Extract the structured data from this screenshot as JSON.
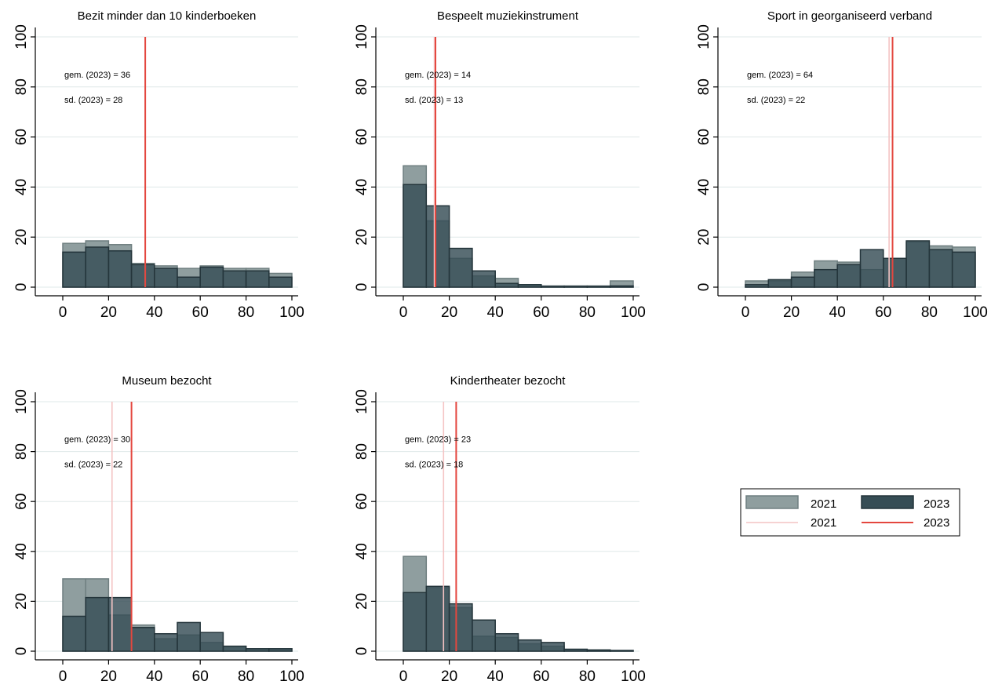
{
  "colors": {
    "bar_2021": "#8f9e9f",
    "bar_2021_stroke": "#6f7f80",
    "bar_2023": "#364d55",
    "bar_2023_stroke": "#24353b",
    "line_2021": "#f4c4c4",
    "line_2023": "#e4473f",
    "grid": "#dfe8e8"
  },
  "legend": {
    "position": "right",
    "items": [
      {
        "label": "2021",
        "kind": "bar",
        "series": "2021"
      },
      {
        "label": "2023",
        "kind": "bar",
        "series": "2023"
      },
      {
        "label": "2021",
        "kind": "line",
        "series": "2021"
      },
      {
        "label": "2023",
        "kind": "line",
        "series": "2023"
      }
    ]
  },
  "chart_data": [
    {
      "type": "bar",
      "title": "Bezit minder dan 10 kinderboeken",
      "xlim": [
        0,
        100
      ],
      "ylim": [
        0,
        100
      ],
      "xticks": [
        0,
        20,
        40,
        60,
        80,
        100
      ],
      "yticks": [
        0,
        20,
        40,
        60,
        80,
        100
      ],
      "grid": true,
      "bin_starts": [
        0,
        10,
        20,
        30,
        40,
        50,
        60,
        70,
        80,
        90
      ],
      "bin_width": 10,
      "series": [
        {
          "name": "2021",
          "values": [
            17.5,
            18.5,
            17,
            9.5,
            8.5,
            7.5,
            8.5,
            7.5,
            7.5,
            5.5
          ]
        },
        {
          "name": "2023",
          "values": [
            14,
            16,
            14.5,
            9,
            7.5,
            4,
            8,
            6.5,
            6.5,
            4
          ]
        }
      ],
      "mean_lines": [
        {
          "series": "2021",
          "x": 36
        },
        {
          "series": "2023",
          "x": 36
        }
      ],
      "annotations": [
        "gem. (2023) = 36",
        "sd. (2023) = 28"
      ]
    },
    {
      "type": "bar",
      "title": "Bespeelt muziekinstrument",
      "xlim": [
        0,
        100
      ],
      "ylim": [
        0,
        100
      ],
      "xticks": [
        0,
        20,
        40,
        60,
        80,
        100
      ],
      "yticks": [
        0,
        20,
        40,
        60,
        80,
        100
      ],
      "grid": true,
      "bin_starts": [
        0,
        10,
        20,
        30,
        40,
        50,
        60,
        70,
        80,
        90
      ],
      "bin_width": 10,
      "series": [
        {
          "name": "2021",
          "values": [
            48.5,
            26.5,
            11.5,
            4.5,
            3.5,
            1,
            0.5,
            0.5,
            0.5,
            2.5
          ]
        },
        {
          "name": "2023",
          "values": [
            41,
            32.5,
            15.5,
            6.5,
            1.5,
            1,
            0.3,
            0.3,
            0.3,
            0.5
          ]
        }
      ],
      "mean_lines": [
        {
          "series": "2021",
          "x": 13.5
        },
        {
          "series": "2023",
          "x": 14
        }
      ],
      "annotations": [
        "gem. (2023) = 14",
        "sd. (2023) = 13"
      ]
    },
    {
      "type": "bar",
      "title": "Sport in georganiseerd verband",
      "xlim": [
        0,
        100
      ],
      "ylim": [
        0,
        100
      ],
      "xticks": [
        0,
        20,
        40,
        60,
        80,
        100
      ],
      "yticks": [
        0,
        20,
        40,
        60,
        80,
        100
      ],
      "grid": true,
      "bin_starts": [
        0,
        10,
        20,
        30,
        40,
        50,
        60,
        70,
        80,
        90
      ],
      "bin_width": 10,
      "series": [
        {
          "name": "2021",
          "values": [
            2.5,
            2.5,
            6,
            10.5,
            10,
            7,
            11.5,
            18,
            16.5,
            16
          ]
        },
        {
          "name": "2023",
          "values": [
            1,
            3,
            4,
            7,
            9,
            15,
            11.5,
            18.5,
            15,
            14
          ]
        }
      ],
      "mean_lines": [
        {
          "series": "2021",
          "x": 62.5
        },
        {
          "series": "2023",
          "x": 64
        }
      ],
      "annotations": [
        "gem. (2023) = 64",
        "sd. (2023) = 22"
      ]
    },
    {
      "type": "bar",
      "title": "Museum bezocht",
      "xlim": [
        0,
        100
      ],
      "ylim": [
        0,
        100
      ],
      "xticks": [
        0,
        20,
        40,
        60,
        80,
        100
      ],
      "yticks": [
        0,
        20,
        40,
        60,
        80,
        100
      ],
      "grid": true,
      "bin_starts": [
        0,
        10,
        20,
        30,
        40,
        50,
        60,
        70,
        80,
        90
      ],
      "bin_width": 10,
      "series": [
        {
          "name": "2021",
          "values": [
            29,
            29,
            14.5,
            10.5,
            5,
            6.5,
            3.5,
            2,
            1,
            1
          ]
        },
        {
          "name": "2023",
          "values": [
            14,
            21.5,
            21.5,
            9.5,
            7,
            11.5,
            7.5,
            2,
            1,
            1
          ]
        }
      ],
      "mean_lines": [
        {
          "series": "2021",
          "x": 21.5
        },
        {
          "series": "2023",
          "x": 30
        }
      ],
      "annotations": [
        "gem. (2023) = 30",
        "sd. (2023) = 22"
      ]
    },
    {
      "type": "bar",
      "title": "Kindertheater bezocht",
      "xlim": [
        0,
        100
      ],
      "ylim": [
        0,
        100
      ],
      "xticks": [
        0,
        20,
        40,
        60,
        80,
        100
      ],
      "yticks": [
        0,
        20,
        40,
        60,
        80,
        100
      ],
      "grid": true,
      "bin_starts": [
        0,
        10,
        20,
        30,
        40,
        50,
        60,
        70,
        80,
        90
      ],
      "bin_width": 10,
      "series": [
        {
          "name": "2021",
          "values": [
            38,
            25.5,
            17.5,
            6,
            5.5,
            3,
            2,
            0.5,
            0.5,
            0.3
          ]
        },
        {
          "name": "2023",
          "values": [
            23.5,
            26,
            19,
            12.5,
            7,
            4.5,
            3.5,
            0.8,
            0.5,
            0.3
          ]
        }
      ],
      "mean_lines": [
        {
          "series": "2021",
          "x": 17.5
        },
        {
          "series": "2023",
          "x": 23
        }
      ],
      "annotations": [
        "gem. (2023) = 23",
        "sd. (2023) = 18"
      ]
    }
  ]
}
